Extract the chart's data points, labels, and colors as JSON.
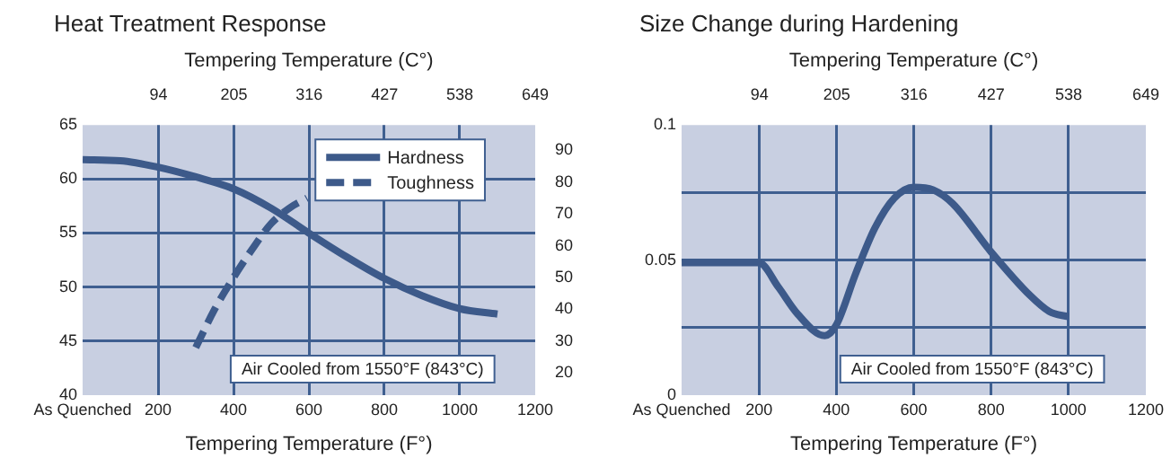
{
  "chart_data": [
    {
      "type": "line",
      "title": "Heat Treatment Response",
      "xlabel": "Tempering Temperature (F°)",
      "x2label": "Tempering Temperature (C°)",
      "xlim": [
        0,
        1200
      ],
      "xticks": [
        {
          "value": 0,
          "label": "As Quenched"
        },
        200,
        400,
        600,
        800,
        1000,
        1200
      ],
      "x2lim": [
        -17.8,
        649
      ],
      "x2ticks": [
        94,
        205,
        316,
        427,
        538,
        649
      ],
      "ylim": [
        40,
        65
      ],
      "yticks": [
        40,
        45,
        50,
        55,
        60,
        65
      ],
      "y2lim": [
        13,
        98
      ],
      "y2ticks": [
        20,
        30,
        40,
        50,
        60,
        70,
        80,
        90
      ],
      "grid": true,
      "legend": "top right",
      "marker": "none",
      "annotations": [
        "Air Cooled from 1550°F (843°C)"
      ],
      "series": [
        {
          "name": "Hardness",
          "color": "#3d5a8a",
          "line_style": "solid",
          "x": [
            0,
            100,
            200,
            300,
            400,
            500,
            600,
            700,
            800,
            900,
            1000,
            1100
          ],
          "values": [
            61.8,
            61.7,
            61.1,
            60.2,
            59.1,
            57.3,
            55.0,
            52.8,
            50.8,
            49.2,
            48.0,
            47.5
          ]
        },
        {
          "name": "Toughness",
          "color": "#3d5a8a",
          "line_style": "dashed",
          "axis": "y2",
          "x": [
            300,
            350,
            400,
            450,
            500,
            550,
            595
          ],
          "values": [
            28,
            40,
            50,
            59,
            67,
            72,
            75
          ]
        }
      ]
    },
    {
      "type": "line",
      "title": "Size Change during Hardening",
      "xlabel": "Tempering Temperature (F°)",
      "x2label": "Tempering Temperature (C°)",
      "xlim": [
        0,
        1200
      ],
      "xticks": [
        {
          "value": 0,
          "label": "As Quenched"
        },
        200,
        400,
        600,
        800,
        1000,
        1200
      ],
      "x2lim": [
        -17.8,
        649
      ],
      "x2ticks": [
        94,
        205,
        316,
        427,
        538,
        649
      ],
      "ylim": [
        0,
        0.1
      ],
      "yticks": [
        0,
        {
          "value": 0.025,
          "label": null
        },
        0.05,
        {
          "value": 0.075,
          "label": null
        },
        0.1
      ],
      "grid": true,
      "marker": "none",
      "annotations": [
        "Air Cooled from 1550°F (843°C)"
      ],
      "series": [
        {
          "color": "#3d5a8a",
          "line_style": "solid",
          "x": [
            0,
            200,
            250,
            300,
            370,
            400,
            450,
            500,
            550,
            600,
            650,
            700,
            800,
            900,
            950,
            1000
          ],
          "values": [
            0.049,
            0.049,
            0.04,
            0.03,
            0.022,
            0.026,
            0.045,
            0.062,
            0.073,
            0.077,
            0.076,
            0.071,
            0.053,
            0.037,
            0.031,
            0.029
          ]
        }
      ]
    }
  ]
}
